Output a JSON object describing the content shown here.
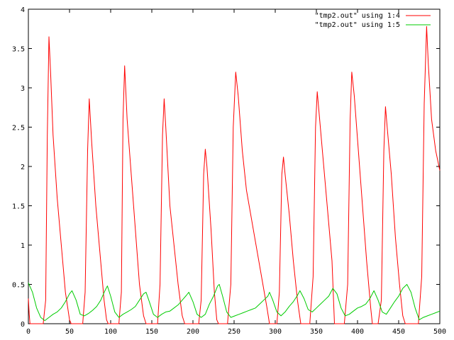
{
  "chart_data": {
    "type": "line",
    "title": "",
    "xlabel": "",
    "ylabel": "",
    "xlim": [
      0,
      500
    ],
    "ylim": [
      0,
      4
    ],
    "xticks": [
      0,
      50,
      100,
      150,
      200,
      250,
      300,
      350,
      400,
      450,
      500
    ],
    "yticks": [
      0,
      0.5,
      1,
      1.5,
      2,
      2.5,
      3,
      3.5,
      4
    ],
    "xtick_labels": [
      "0",
      "50",
      "100",
      "150",
      "200",
      "250",
      "300",
      "350",
      "400",
      "450",
      "500"
    ],
    "ytick_labels": [
      "0",
      "0.5",
      "1",
      "1.5",
      "2",
      "2.5",
      "3",
      "3.5",
      "4"
    ],
    "grid": false,
    "legend": "top-right",
    "series": [
      {
        "name": "\"tmp2.out\" using 1:4",
        "color": "#ff0000",
        "x": [
          0,
          1,
          2,
          3,
          4,
          18,
          21,
          23,
          25,
          27,
          30,
          35,
          40,
          45,
          50,
          52,
          66,
          69,
          72,
          74,
          77,
          82,
          87,
          92,
          95,
          97,
          110,
          113,
          115,
          117,
          120,
          125,
          130,
          135,
          140,
          143,
          157,
          160,
          163,
          165,
          167,
          172,
          177,
          182,
          187,
          190,
          207,
          210,
          213,
          215,
          217,
          222,
          226,
          229,
          231,
          242,
          246,
          249,
          252,
          255,
          260,
          265,
          270,
          275,
          280,
          285,
          290,
          293,
          302,
          305,
          308,
          310,
          312,
          317,
          322,
          327,
          331,
          342,
          346,
          349,
          351,
          354,
          359,
          364,
          369,
          372,
          384,
          388,
          391,
          393,
          396,
          401,
          406,
          411,
          416,
          418,
          425,
          429,
          432,
          434,
          436,
          441,
          446,
          451,
          455,
          458,
          474,
          478,
          481,
          484,
          486,
          490,
          495,
          500
        ],
        "y": [
          0.32,
          0.12,
          0.0,
          0.0,
          0.0,
          0.0,
          0.3,
          2.4,
          3.65,
          3.2,
          2.4,
          1.6,
          1.0,
          0.4,
          0.05,
          0.0,
          0.0,
          0.4,
          2.2,
          2.86,
          2.3,
          1.5,
          0.9,
          0.3,
          0.05,
          0.0,
          0.0,
          0.4,
          2.6,
          3.28,
          2.6,
          1.9,
          1.2,
          0.5,
          0.1,
          0.0,
          0.0,
          0.5,
          2.4,
          2.86,
          2.5,
          1.5,
          1.0,
          0.5,
          0.1,
          0.0,
          0.0,
          0.3,
          1.9,
          2.22,
          2.0,
          1.2,
          0.4,
          0.05,
          0.0,
          0.0,
          0.5,
          2.5,
          3.2,
          2.9,
          2.2,
          1.7,
          1.4,
          1.1,
          0.8,
          0.5,
          0.2,
          0.0,
          0.0,
          0.4,
          1.9,
          2.12,
          1.9,
          1.4,
          0.8,
          0.3,
          0.0,
          0.0,
          0.6,
          2.5,
          2.95,
          2.6,
          2.0,
          1.4,
          0.8,
          0.0,
          0.0,
          0.5,
          2.6,
          3.2,
          2.9,
          2.2,
          1.5,
          0.8,
          0.2,
          0.0,
          0.0,
          0.3,
          2.2,
          2.76,
          2.5,
          1.9,
          1.1,
          0.5,
          0.1,
          0.0,
          0.0,
          0.6,
          2.8,
          3.78,
          3.3,
          2.6,
          2.2,
          1.95
        ]
      },
      {
        "name": "\"tmp2.out\" using 1:5",
        "color": "#00cc00",
        "x": [
          0,
          5,
          10,
          15,
          20,
          25,
          30,
          35,
          40,
          45,
          50,
          53,
          58,
          63,
          68,
          73,
          78,
          83,
          88,
          93,
          96,
          100,
          105,
          110,
          115,
          120,
          125,
          130,
          135,
          140,
          143,
          147,
          152,
          157,
          162,
          167,
          172,
          177,
          182,
          187,
          192,
          195,
          200,
          205,
          210,
          215,
          220,
          225,
          230,
          232,
          236,
          241,
          246,
          251,
          256,
          261,
          266,
          271,
          276,
          281,
          286,
          291,
          293,
          297,
          302,
          307,
          312,
          317,
          322,
          327,
          330,
          335,
          340,
          345,
          350,
          355,
          360,
          365,
          370,
          375,
          380,
          385,
          390,
          395,
          400,
          405,
          410,
          415,
          420,
          425,
          430,
          435,
          440,
          445,
          450,
          455,
          460,
          465,
          470,
          475,
          480,
          485,
          490,
          495,
          500
        ],
        "y": [
          0.52,
          0.4,
          0.2,
          0.08,
          0.04,
          0.08,
          0.12,
          0.15,
          0.2,
          0.28,
          0.38,
          0.42,
          0.3,
          0.12,
          0.1,
          0.13,
          0.17,
          0.22,
          0.3,
          0.42,
          0.48,
          0.35,
          0.15,
          0.08,
          0.12,
          0.15,
          0.18,
          0.22,
          0.3,
          0.38,
          0.4,
          0.28,
          0.12,
          0.08,
          0.12,
          0.15,
          0.16,
          0.2,
          0.24,
          0.3,
          0.36,
          0.4,
          0.28,
          0.12,
          0.08,
          0.12,
          0.25,
          0.35,
          0.48,
          0.5,
          0.35,
          0.15,
          0.08,
          0.1,
          0.12,
          0.14,
          0.16,
          0.18,
          0.2,
          0.25,
          0.3,
          0.35,
          0.4,
          0.3,
          0.15,
          0.1,
          0.15,
          0.22,
          0.28,
          0.36,
          0.42,
          0.32,
          0.18,
          0.15,
          0.2,
          0.25,
          0.3,
          0.35,
          0.45,
          0.38,
          0.2,
          0.1,
          0.12,
          0.16,
          0.2,
          0.22,
          0.25,
          0.32,
          0.42,
          0.3,
          0.15,
          0.12,
          0.2,
          0.28,
          0.35,
          0.45,
          0.5,
          0.4,
          0.2,
          0.05,
          0.08,
          0.1,
          0.12,
          0.14,
          0.16
        ]
      }
    ]
  }
}
